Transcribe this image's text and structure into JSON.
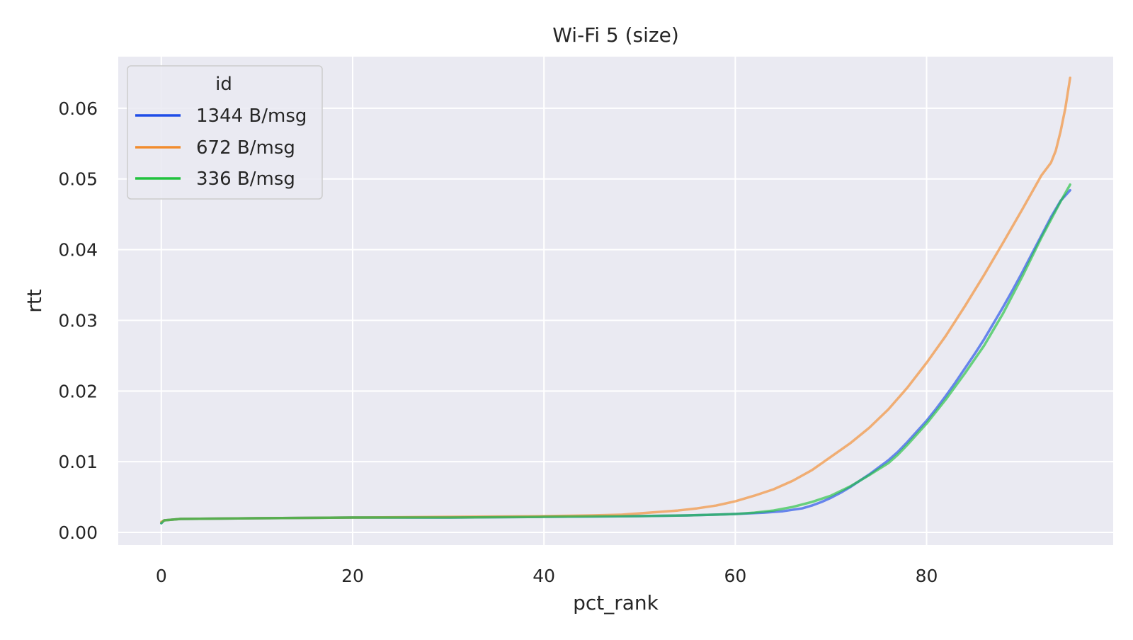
{
  "chart_data": {
    "type": "line",
    "title": "Wi-Fi 5 (size)",
    "xlabel": "pct_rank",
    "ylabel": "rtt",
    "xlim": [
      -4.5,
      99.5
    ],
    "ylim": [
      -0.0018,
      0.0673
    ],
    "xticks": [
      0,
      20,
      40,
      60,
      80
    ],
    "xtick_labels": [
      "0",
      "20",
      "40",
      "60",
      "80"
    ],
    "yticks": [
      0.0,
      0.01,
      0.02,
      0.03,
      0.04,
      0.05,
      0.06
    ],
    "ytick_labels": [
      "0.00",
      "0.01",
      "0.02",
      "0.03",
      "0.04",
      "0.05",
      "0.06"
    ],
    "grid": true,
    "legend": {
      "title": "id",
      "placement": "top-left"
    },
    "series": [
      {
        "name": "1344 B/msg",
        "color": "#1f4de8",
        "points": [
          [
            0,
            0.0013
          ],
          [
            0.3,
            0.0017
          ],
          [
            2,
            0.0019
          ],
          [
            10,
            0.002
          ],
          [
            20,
            0.0021
          ],
          [
            30,
            0.0021
          ],
          [
            40,
            0.0022
          ],
          [
            50,
            0.0023
          ],
          [
            55,
            0.0024
          ],
          [
            60,
            0.0026
          ],
          [
            63,
            0.0028
          ],
          [
            65,
            0.003
          ],
          [
            67,
            0.0034
          ],
          [
            68,
            0.0038
          ],
          [
            69,
            0.0043
          ],
          [
            70,
            0.0049
          ],
          [
            71,
            0.0056
          ],
          [
            72,
            0.0064
          ],
          [
            73,
            0.0073
          ],
          [
            74,
            0.0082
          ],
          [
            75,
            0.0092
          ],
          [
            76,
            0.0102
          ],
          [
            77,
            0.0114
          ],
          [
            78,
            0.0128
          ],
          [
            79,
            0.0143
          ],
          [
            80,
            0.0158
          ],
          [
            81,
            0.0175
          ],
          [
            82,
            0.0193
          ],
          [
            83,
            0.0212
          ],
          [
            84,
            0.0232
          ],
          [
            85,
            0.0252
          ],
          [
            86,
            0.0273
          ],
          [
            87,
            0.0296
          ],
          [
            88,
            0.0319
          ],
          [
            89,
            0.0343
          ],
          [
            90,
            0.0368
          ],
          [
            91,
            0.0394
          ],
          [
            92,
            0.042
          ],
          [
            93,
            0.0446
          ],
          [
            94,
            0.0469
          ],
          [
            95,
            0.0484
          ]
        ]
      },
      {
        "name": "672 B/msg",
        "color": "#f28c2e",
        "points": [
          [
            0,
            0.0015
          ],
          [
            0.3,
            0.0017
          ],
          [
            2,
            0.0019
          ],
          [
            10,
            0.002
          ],
          [
            20,
            0.0021
          ],
          [
            30,
            0.0022
          ],
          [
            40,
            0.0023
          ],
          [
            45,
            0.0024
          ],
          [
            48,
            0.0025
          ],
          [
            50,
            0.0027
          ],
          [
            52,
            0.0029
          ],
          [
            54,
            0.0031
          ],
          [
            56,
            0.0034
          ],
          [
            58,
            0.0038
          ],
          [
            60,
            0.0044
          ],
          [
            62,
            0.0052
          ],
          [
            64,
            0.0061
          ],
          [
            66,
            0.0073
          ],
          [
            68,
            0.0088
          ],
          [
            70,
            0.0107
          ],
          [
            72,
            0.0126
          ],
          [
            74,
            0.0148
          ],
          [
            76,
            0.0174
          ],
          [
            78,
            0.0205
          ],
          [
            80,
            0.024
          ],
          [
            82,
            0.0278
          ],
          [
            84,
            0.032
          ],
          [
            86,
            0.0364
          ],
          [
            88,
            0.041
          ],
          [
            90,
            0.0457
          ],
          [
            92,
            0.0505
          ],
          [
            93,
            0.0523
          ],
          [
            93.5,
            0.054
          ],
          [
            94,
            0.0567
          ],
          [
            94.5,
            0.06
          ],
          [
            95,
            0.0643
          ]
        ]
      },
      {
        "name": "336 B/msg",
        "color": "#21c23e",
        "points": [
          [
            0,
            0.0013
          ],
          [
            0.3,
            0.0017
          ],
          [
            2,
            0.0019
          ],
          [
            10,
            0.002
          ],
          [
            20,
            0.0021
          ],
          [
            30,
            0.0021
          ],
          [
            40,
            0.0022
          ],
          [
            50,
            0.0023
          ],
          [
            55,
            0.0024
          ],
          [
            60,
            0.0026
          ],
          [
            62,
            0.0028
          ],
          [
            64,
            0.0031
          ],
          [
            66,
            0.0036
          ],
          [
            68,
            0.0043
          ],
          [
            70,
            0.0052
          ],
          [
            72,
            0.0065
          ],
          [
            74,
            0.0081
          ],
          [
            76,
            0.0098
          ],
          [
            77,
            0.011
          ],
          [
            78,
            0.0124
          ],
          [
            79,
            0.0139
          ],
          [
            80,
            0.0154
          ],
          [
            82,
            0.0188
          ],
          [
            84,
            0.0225
          ],
          [
            86,
            0.0264
          ],
          [
            88,
            0.031
          ],
          [
            90,
            0.0362
          ],
          [
            92,
            0.0417
          ],
          [
            94,
            0.0468
          ],
          [
            95,
            0.0492
          ]
        ]
      }
    ]
  }
}
